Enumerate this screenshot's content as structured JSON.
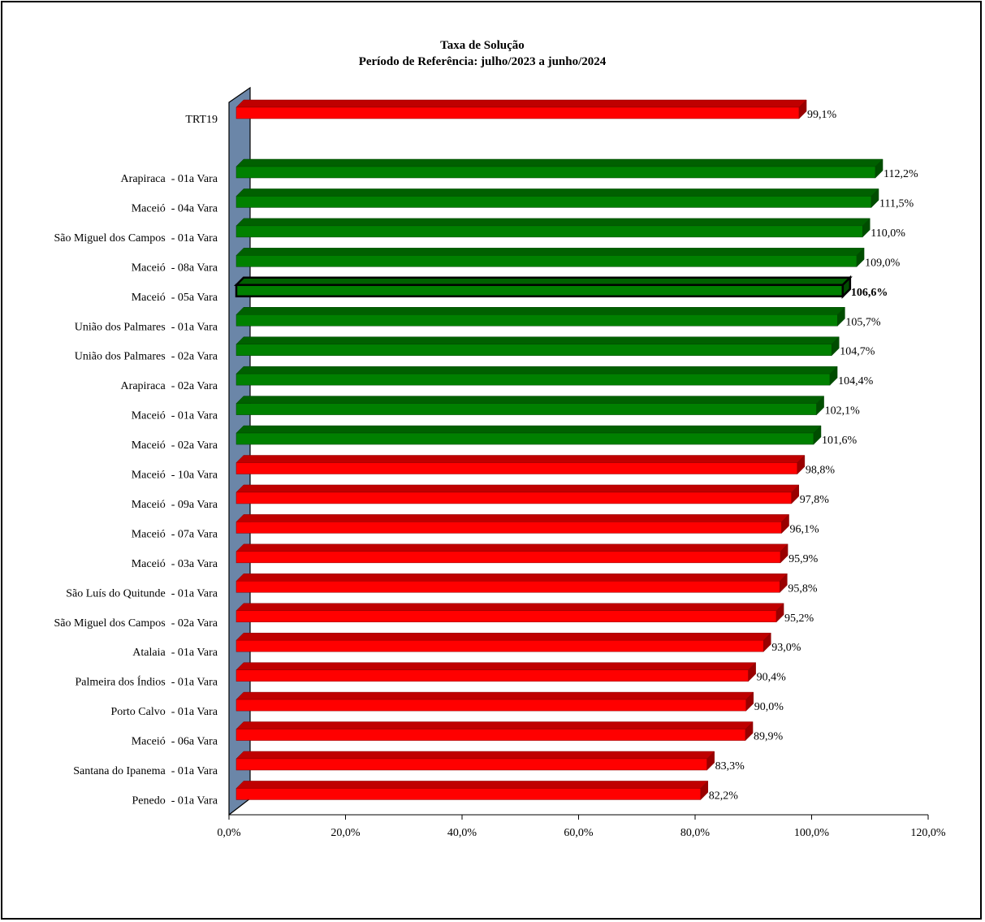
{
  "chart_data": {
    "type": "bar",
    "orientation": "horizontal",
    "title": "Taxa de Solução",
    "subtitle": "Período de Referência: julho/2023 a junho/2024",
    "xlim": [
      0,
      120
    ],
    "x_ticks": [
      "0,0%",
      "20,0%",
      "40,0%",
      "60,0%",
      "80,0%",
      "100,0%",
      "120,0%"
    ],
    "x_tick_values": [
      0,
      20,
      40,
      60,
      80,
      100,
      120
    ],
    "grid": false,
    "colors": {
      "above": "#008000",
      "below": "#ff0000",
      "highlight": "#008000",
      "wall": "#6b86a8"
    },
    "bars": [
      {
        "label": "TRT19",
        "value": 99.1,
        "value_label": "99,1%",
        "color": "below",
        "gap_after": true
      },
      {
        "label": "Arapiraca  - 01a Vara",
        "value": 112.2,
        "value_label": "112,2%",
        "color": "above"
      },
      {
        "label": "Maceió  - 04a Vara",
        "value": 111.5,
        "value_label": "111,5%",
        "color": "above"
      },
      {
        "label": "São Miguel dos Campos  - 01a Vara",
        "value": 110.0,
        "value_label": "110,0%",
        "color": "above"
      },
      {
        "label": "Maceió  - 08a Vara",
        "value": 109.0,
        "value_label": "109,0%",
        "color": "above"
      },
      {
        "label": "Maceió  - 05a Vara",
        "value": 106.6,
        "value_label": "106,6%",
        "color": "highlight",
        "highlight": true
      },
      {
        "label": "União dos Palmares  - 01a Vara",
        "value": 105.7,
        "value_label": "105,7%",
        "color": "above"
      },
      {
        "label": "União dos Palmares  - 02a Vara",
        "value": 104.7,
        "value_label": "104,7%",
        "color": "above"
      },
      {
        "label": "Arapiraca  - 02a Vara",
        "value": 104.4,
        "value_label": "104,4%",
        "color": "above"
      },
      {
        "label": "Maceió  - 01a Vara",
        "value": 102.1,
        "value_label": "102,1%",
        "color": "above"
      },
      {
        "label": "Maceió  - 02a Vara",
        "value": 101.6,
        "value_label": "101,6%",
        "color": "above"
      },
      {
        "label": "Maceió  - 10a Vara",
        "value": 98.8,
        "value_label": "98,8%",
        "color": "below"
      },
      {
        "label": "Maceió  - 09a Vara",
        "value": 97.8,
        "value_label": "97,8%",
        "color": "below"
      },
      {
        "label": "Maceió  - 07a Vara",
        "value": 96.1,
        "value_label": "96,1%",
        "color": "below"
      },
      {
        "label": "Maceió  - 03a Vara",
        "value": 95.9,
        "value_label": "95,9%",
        "color": "below"
      },
      {
        "label": "São Luís do Quitunde  - 01a Vara",
        "value": 95.8,
        "value_label": "95,8%",
        "color": "below"
      },
      {
        "label": "São Miguel dos Campos  - 02a Vara",
        "value": 95.2,
        "value_label": "95,2%",
        "color": "below"
      },
      {
        "label": "Atalaia  - 01a Vara",
        "value": 93.0,
        "value_label": "93,0%",
        "color": "below"
      },
      {
        "label": "Palmeira dos Índios  - 01a Vara",
        "value": 90.4,
        "value_label": "90,4%",
        "color": "below"
      },
      {
        "label": "Porto Calvo  - 01a Vara",
        "value": 90.0,
        "value_label": "90,0%",
        "color": "below"
      },
      {
        "label": "Maceió  - 06a Vara",
        "value": 89.9,
        "value_label": "89,9%",
        "color": "below"
      },
      {
        "label": "Santana do Ipanema  - 01a Vara",
        "value": 83.3,
        "value_label": "83,3%",
        "color": "below"
      },
      {
        "label": "Penedo  - 01a Vara",
        "value": 82.2,
        "value_label": "82,2%",
        "color": "below"
      }
    ]
  }
}
